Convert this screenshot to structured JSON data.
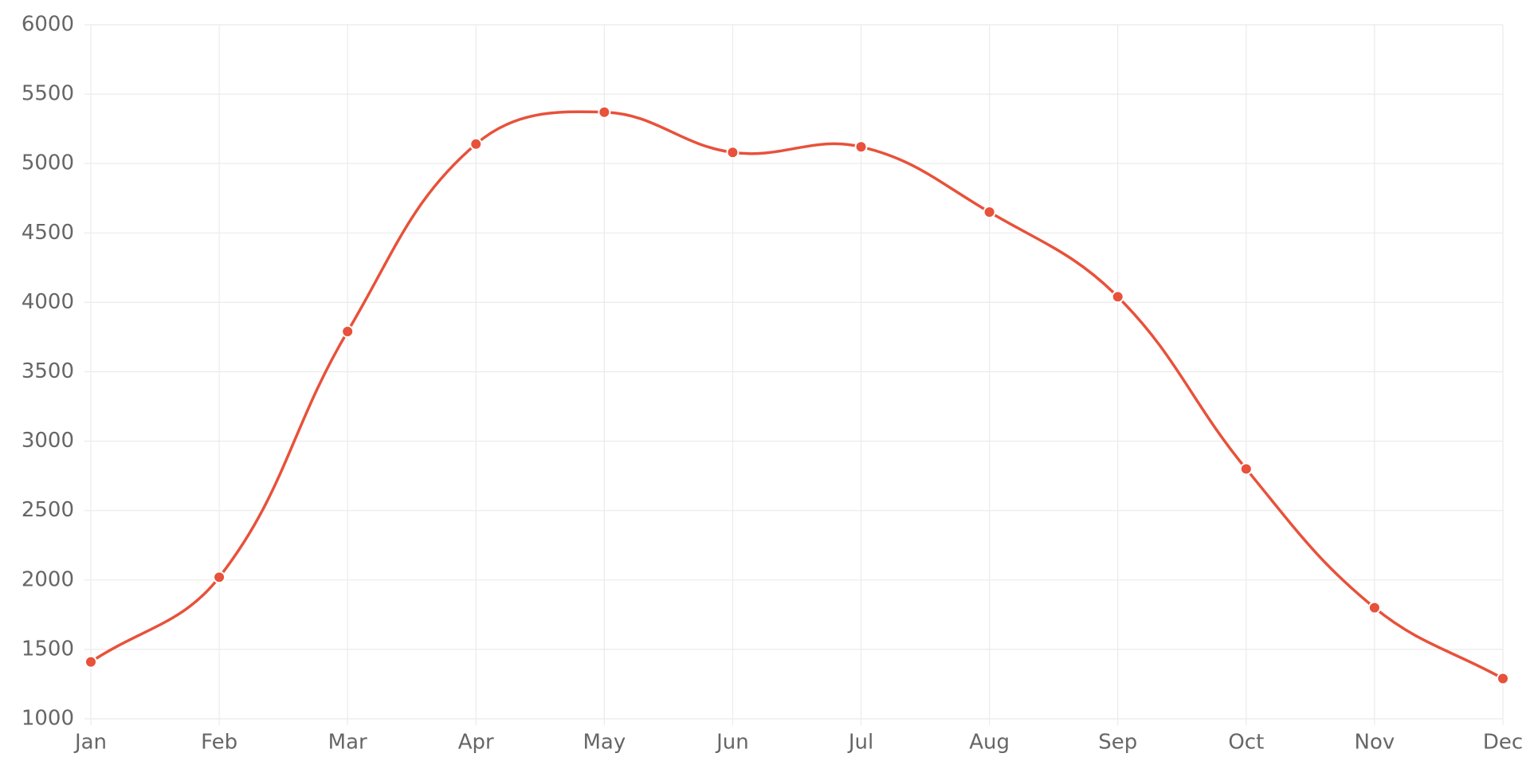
{
  "chart_data": {
    "type": "line",
    "categories": [
      "Jan",
      "Feb",
      "Mar",
      "Apr",
      "May",
      "Jun",
      "Jul",
      "Aug",
      "Sep",
      "Oct",
      "Nov",
      "Dec"
    ],
    "values": [
      1410,
      2020,
      3790,
      5140,
      5370,
      5080,
      5120,
      4650,
      4040,
      2800,
      1800,
      1290
    ],
    "color": "#e8513a",
    "ylim": [
      1000,
      6000
    ],
    "yticks": [
      1000,
      1500,
      2000,
      2500,
      3000,
      3500,
      4000,
      4500,
      5000,
      5500,
      6000
    ],
    "grid": true
  }
}
